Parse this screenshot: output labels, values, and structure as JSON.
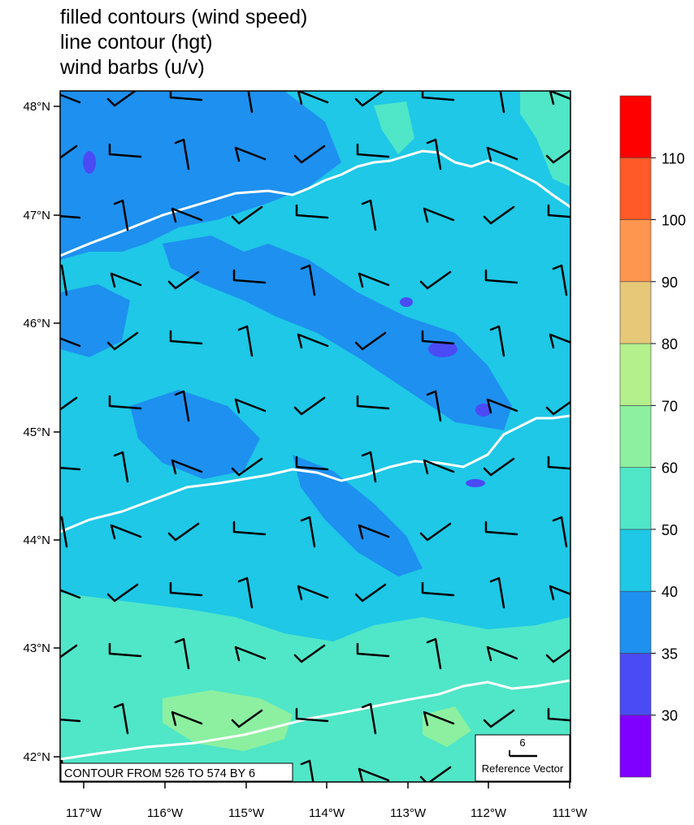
{
  "titles": [
    "filled contours (wind speed)",
    "line contour (hgt)",
    "wind barbs (u/v)"
  ],
  "lat_labels": [
    "48°N",
    "47°N",
    "46°N",
    "45°N",
    "44°N",
    "43°N",
    "42°N"
  ],
  "lon_labels": [
    "117°W",
    "116°W",
    "115°W",
    "114°W",
    "113°W",
    "112°W",
    "111°W"
  ],
  "colorbar": {
    "labels": [
      "30",
      "35",
      "40",
      "50",
      "60",
      "70",
      "80",
      "90",
      "100",
      "110"
    ],
    "colors": [
      "#8000ff",
      "#4b4bf5",
      "#1e90f0",
      "#1ec8e6",
      "#50e6c8",
      "#8cf0a0",
      "#b4f08c",
      "#e6c878",
      "#ff9650",
      "#ff5a28",
      "#ff0000"
    ]
  },
  "contour_info": "CONTOUR FROM 526 TO 574 BY 6",
  "reference_vector": {
    "value": "6",
    "label": "Reference Vector"
  },
  "colors": {
    "ocean_base": "#1ec8e6",
    "contour_line": "#ffffff",
    "barb": "#000000"
  }
}
